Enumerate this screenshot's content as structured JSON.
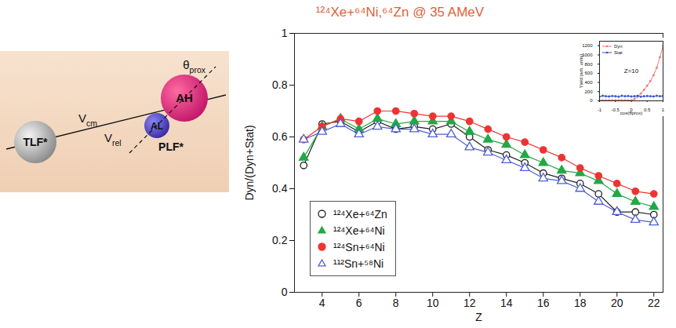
{
  "chart_data": [
    {
      "type": "line",
      "title": "¹²⁴Xe+⁶⁴Ni,⁶⁴Zn  @ 35 AMeV",
      "x_label": "Z",
      "y_label": "Dyn/(Dyn+Stat)",
      "x": [
        3,
        4,
        5,
        6,
        7,
        8,
        9,
        10,
        11,
        12,
        13,
        14,
        15,
        16,
        17,
        18,
        19,
        20,
        21,
        22
      ],
      "series": [
        {
          "name": "¹²⁴Xe+⁶⁴Zn",
          "color": "#222222",
          "marker": "circle-open",
          "line_style": "solid",
          "values": [
            0.49,
            0.65,
            0.66,
            0.62,
            0.66,
            0.63,
            0.64,
            0.63,
            0.65,
            0.6,
            0.55,
            0.53,
            0.5,
            0.46,
            0.44,
            0.42,
            0.38,
            0.31,
            0.31,
            0.3
          ]
        },
        {
          "name": "¹²⁴Xe+⁶⁴Ni",
          "color": "#22a844",
          "marker": "triangle",
          "line_style": "solid",
          "values": [
            0.52,
            0.64,
            0.67,
            0.63,
            0.67,
            0.65,
            0.66,
            0.66,
            0.66,
            0.62,
            0.59,
            0.57,
            0.53,
            0.5,
            0.47,
            0.46,
            0.43,
            0.38,
            0.35,
            0.33
          ]
        },
        {
          "name": "¹²⁴Sn+⁶⁴Ni",
          "color": "#ee3333",
          "marker": "circle",
          "line_style": "solid",
          "values": [
            0.59,
            0.64,
            0.67,
            0.66,
            0.7,
            0.7,
            0.69,
            0.68,
            0.68,
            0.66,
            0.63,
            0.6,
            0.58,
            0.55,
            0.52,
            0.48,
            0.45,
            0.42,
            0.39,
            0.38
          ]
        },
        {
          "name": "¹¹²Sn+⁵⁸Ni",
          "color": "#4f5fd8",
          "marker": "triangle-open",
          "line_style": "solid",
          "values": [
            0.59,
            0.62,
            0.65,
            0.61,
            0.64,
            0.63,
            0.63,
            0.61,
            0.61,
            0.56,
            0.54,
            0.51,
            0.48,
            0.44,
            0.43,
            0.4,
            0.35,
            0.31,
            0.28,
            0.27
          ]
        }
      ],
      "xlim": [
        2.5,
        22.5
      ],
      "xticks": [
        4,
        6,
        8,
        10,
        12,
        14,
        16,
        18,
        20,
        22
      ],
      "ylim": [
        0,
        1
      ],
      "yticks": [
        0,
        0.2,
        0.4,
        0.6,
        0.8,
        1
      ],
      "grid": false,
      "legend": "lower left"
    },
    {
      "type": "line",
      "annotations": [
        "Z=10"
      ],
      "x_label": "cos(θprox)",
      "y_label": "Yield (arb. units)",
      "x": [
        -1,
        -0.9,
        -0.8,
        -0.7,
        -0.6,
        -0.5,
        -0.4,
        -0.3,
        -0.2,
        -0.1,
        0,
        0.1,
        0.2,
        0.3,
        0.4,
        0.5,
        0.6,
        0.7,
        0.8,
        0.9,
        1
      ],
      "series": [
        {
          "name": "Dyn",
          "color": "#f07878",
          "marker": "circle",
          "line_style": "solid",
          "values": [
            10,
            10,
            10,
            10,
            10,
            10,
            10,
            10,
            10,
            10,
            10,
            40,
            90,
            160,
            240,
            330,
            430,
            560,
            720,
            950,
            1200
          ]
        },
        {
          "name": "Stat",
          "color": "#3355cc",
          "marker": "circle",
          "line_style": "solid",
          "values": [
            90,
            110,
            100,
            95,
            105,
            100,
            90,
            110,
            100,
            105,
            95,
            100,
            110,
            90,
            100,
            105,
            100,
            95,
            110,
            100,
            105
          ]
        }
      ],
      "xlim": [
        -1,
        1
      ],
      "xticks": [
        -1,
        -0.5,
        0,
        0.5,
        1
      ],
      "ylim": [
        0,
        1300
      ],
      "yticks": [
        0,
        200,
        400,
        600,
        800,
        1000,
        1200
      ],
      "grid": false,
      "legend": "upper left"
    }
  ],
  "diagram": {
    "labels": {
      "tlf": "TLF*",
      "plf": "PLF*",
      "ah": "AH",
      "al": "AL",
      "v_cm": {
        "base": "V",
        "sub": "cm"
      },
      "v_rel": {
        "base": "V",
        "sub": "rel"
      },
      "theta": {
        "base": "θ",
        "sub": "prox"
      }
    }
  }
}
